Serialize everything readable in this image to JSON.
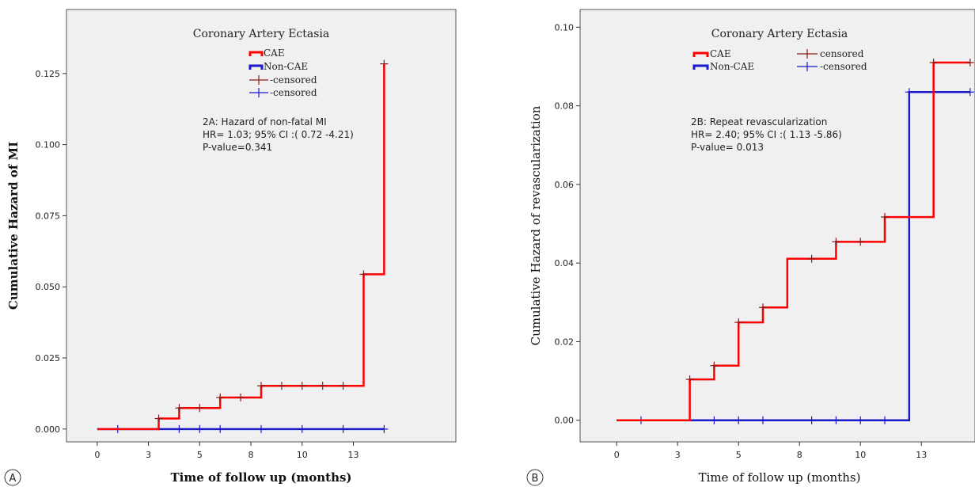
{
  "panel_a": {
    "panel_label": "A",
    "legend_title": "Coronary Artery Ectasia",
    "legend_items": [
      "CAE",
      "Non-CAE",
      "-censored",
      "-censored"
    ],
    "annotation": [
      "2A: Hazard of non-fatal MI",
      "HR= 1.03; 95% CI :( 0.72 -4.21)",
      "P-value=0.341"
    ]
  },
  "panel_b": {
    "panel_label": "B",
    "legend_title": "Coronary Artery Ectasia",
    "legend_items": [
      "CAE",
      "Non-CAE",
      "censored",
      "-censored"
    ],
    "annotation": [
      "2B: Repeat revascularization",
      "HR= 2.40; 95% CI :( 1.13 -5.86)",
      "P-value= 0.013"
    ]
  },
  "colors": {
    "cae": "#ff0000",
    "non_cae": "#1a1acc",
    "censored_cae": "#8b1a1a",
    "censored_non_cae": "#1a1acc",
    "plot_bg": "#f0f0f0"
  },
  "chart_data": [
    {
      "type": "line",
      "step": "post",
      "xlabel": "Time of follow up (months)",
      "ylabel": "Cumulative Hazard of MI",
      "xlim": [
        -1.5,
        17.5
      ],
      "ylim": [
        -0.0045,
        0.1475
      ],
      "x_ticks": [
        0,
        3,
        5,
        8,
        10,
        13
      ],
      "x_tick_positions": [
        0,
        2.5,
        5,
        7.5,
        10,
        12.5
      ],
      "y_ticks": [
        0.0,
        0.025,
        0.05,
        0.075,
        0.1,
        0.125
      ],
      "y_tick_labels": [
        "0.000",
        "0.025",
        "0.050",
        "0.075",
        "0.100",
        "0.125"
      ],
      "grid": false,
      "legend_position": "top-center",
      "series": [
        {
          "name": "CAE",
          "color": "#ff0000",
          "steps": [
            [
              0,
              0.0
            ],
            [
              3.0,
              0.0037
            ],
            [
              4.0,
              0.0074
            ],
            [
              6.0,
              0.0111
            ],
            [
              8.0,
              0.0152
            ],
            [
              13.0,
              0.0544
            ],
            [
              14.0,
              0.1284
            ]
          ],
          "x_end": 14.0,
          "censored": [
            [
              3.0,
              0.0037
            ],
            [
              4.0,
              0.0074
            ],
            [
              5.0,
              0.0074
            ],
            [
              6.0,
              0.0111
            ],
            [
              7.0,
              0.0111
            ],
            [
              8.0,
              0.0152
            ],
            [
              9.0,
              0.0152
            ],
            [
              10.0,
              0.0152
            ],
            [
              11.0,
              0.0152
            ],
            [
              12.0,
              0.0152
            ],
            [
              13.0,
              0.0544
            ],
            [
              14.0,
              0.1284
            ]
          ]
        },
        {
          "name": "Non-CAE",
          "color": "#1a1acc",
          "steps": [
            [
              0,
              0.0
            ]
          ],
          "x_end": 14.0,
          "censored": [
            [
              1.0,
              0.0
            ],
            [
              4.0,
              0.0
            ],
            [
              5.0,
              0.0
            ],
            [
              6.0,
              0.0
            ],
            [
              8.0,
              0.0
            ],
            [
              10.0,
              0.0
            ],
            [
              12.0,
              0.0
            ],
            [
              14.0,
              0.0
            ]
          ]
        }
      ]
    },
    {
      "type": "line",
      "step": "post",
      "xlabel": "Time of follow up (months)",
      "ylabel": "Cumulative Hazard of revascularization",
      "xlim": [
        -1.5,
        14.7
      ],
      "ylim": [
        -0.0055,
        0.1045
      ],
      "x_ticks": [
        0,
        3,
        5,
        8,
        10,
        13
      ],
      "x_tick_positions": [
        0,
        2.5,
        5,
        7.5,
        10,
        12.5
      ],
      "y_ticks": [
        0.0,
        0.02,
        0.04,
        0.06,
        0.08,
        0.1
      ],
      "y_tick_labels": [
        "0.00",
        "0.02",
        "0.04",
        "0.06",
        "0.08",
        "0.10"
      ],
      "grid": false,
      "legend_position": "top-center",
      "series": [
        {
          "name": "CAE",
          "color": "#ff0000",
          "steps": [
            [
              0,
              0.0
            ],
            [
              3.0,
              0.0104
            ],
            [
              4.0,
              0.0139
            ],
            [
              5.0,
              0.0249
            ],
            [
              6.0,
              0.0287
            ],
            [
              7.0,
              0.0411
            ],
            [
              9.0,
              0.0454
            ],
            [
              11.0,
              0.0517
            ],
            [
              13.0,
              0.091
            ]
          ],
          "x_end": 14.5,
          "censored": [
            [
              3.0,
              0.0104
            ],
            [
              4.0,
              0.0139
            ],
            [
              5.0,
              0.0249
            ],
            [
              6.0,
              0.0287
            ],
            [
              8.0,
              0.0411
            ],
            [
              9.0,
              0.0454
            ],
            [
              10.0,
              0.0454
            ],
            [
              11.0,
              0.0517
            ],
            [
              13.0,
              0.091
            ],
            [
              14.5,
              0.091
            ]
          ]
        },
        {
          "name": "Non-CAE",
          "color": "#1a1acc",
          "steps": [
            [
              0,
              0.0
            ],
            [
              12.0,
              0.0835
            ]
          ],
          "x_end": 14.5,
          "censored": [
            [
              1.0,
              0.0
            ],
            [
              4.0,
              0.0
            ],
            [
              5.0,
              0.0
            ],
            [
              6.0,
              0.0
            ],
            [
              8.0,
              0.0
            ],
            [
              9.0,
              0.0
            ],
            [
              10.0,
              0.0
            ],
            [
              11.0,
              0.0
            ],
            [
              12.0,
              0.0835
            ],
            [
              14.5,
              0.0835
            ]
          ]
        }
      ]
    }
  ]
}
